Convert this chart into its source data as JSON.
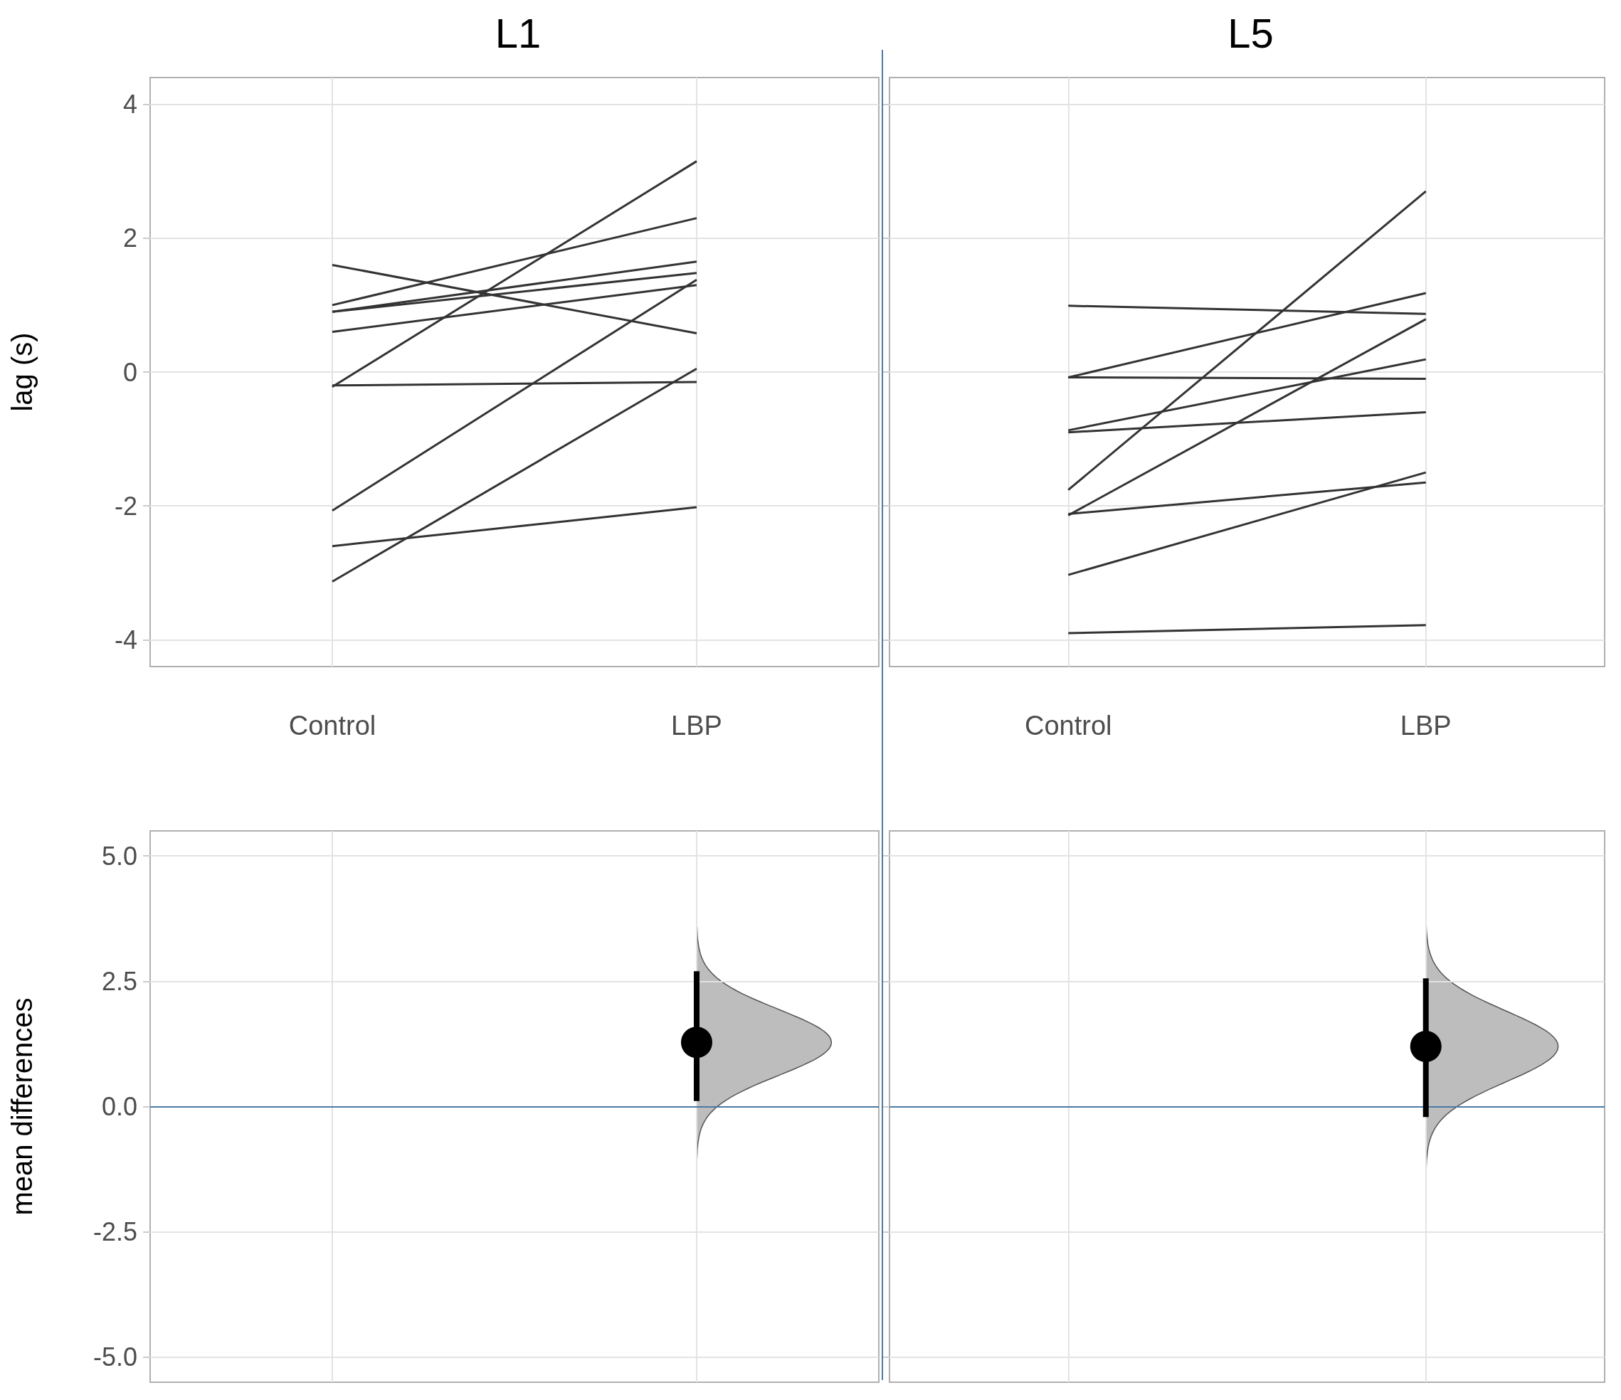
{
  "chart_data": [
    {
      "type": "line",
      "title": "L1",
      "ylabel": "lag (s)",
      "categories": [
        "Control",
        "LBP"
      ],
      "ylim": [
        -4.4,
        4.4
      ],
      "yticks": [
        -4,
        -2,
        0,
        2,
        4
      ],
      "grid": true,
      "marker": "none",
      "series": [
        {
          "color": "#333333",
          "values": [
            1.6,
            0.58
          ]
        },
        {
          "color": "#333333",
          "values": [
            1.0,
            2.3
          ]
        },
        {
          "color": "#333333",
          "values": [
            0.9,
            1.65
          ]
        },
        {
          "color": "#333333",
          "values": [
            0.9,
            1.48
          ]
        },
        {
          "color": "#333333",
          "values": [
            0.6,
            1.3
          ]
        },
        {
          "color": "#333333",
          "values": [
            -0.22,
            3.15
          ]
        },
        {
          "color": "#333333",
          "values": [
            -0.2,
            -0.15
          ]
        },
        {
          "color": "#333333",
          "values": [
            -2.07,
            1.38
          ]
        },
        {
          "color": "#333333",
          "values": [
            -3.13,
            0.05
          ]
        },
        {
          "color": "#333333",
          "values": [
            -2.6,
            -2.02
          ]
        }
      ]
    },
    {
      "type": "line",
      "title": "L5",
      "categories": [
        "Control",
        "LBP"
      ],
      "ylim": [
        -4.4,
        4.4
      ],
      "yticks": [
        -4,
        -2,
        0,
        2,
        4
      ],
      "grid": true,
      "marker": "none",
      "tick_labels": "x",
      "series": [
        {
          "color": "#333333",
          "values": [
            0.99,
            0.87
          ]
        },
        {
          "color": "#333333",
          "values": [
            -0.08,
            1.18
          ]
        },
        {
          "color": "#333333",
          "values": [
            -0.08,
            -0.1
          ]
        },
        {
          "color": "#333333",
          "values": [
            -0.87,
            0.19
          ]
        },
        {
          "color": "#333333",
          "values": [
            -0.9,
            -0.6
          ]
        },
        {
          "color": "#333333",
          "values": [
            -1.76,
            2.7
          ]
        },
        {
          "color": "#333333",
          "values": [
            -2.14,
            0.79
          ]
        },
        {
          "color": "#333333",
          "values": [
            -2.12,
            -1.65
          ]
        },
        {
          "color": "#333333",
          "values": [
            -3.03,
            -1.5
          ]
        },
        {
          "color": "#333333",
          "values": [
            -3.9,
            -3.78
          ]
        }
      ]
    },
    {
      "type": "scatter",
      "ylabel": "mean differences",
      "categories": [
        null,
        null
      ],
      "values": [
        null,
        1.28
      ],
      "errors": [
        null,
        [
          0.11,
          2.7
        ]
      ],
      "color": "#000000",
      "marker": "circle",
      "ylim": [
        -5.5,
        5.5
      ],
      "yticks": [
        {
          "value": -5,
          "label": "-5.0"
        },
        {
          "value": -2.5,
          "label": "-2.5"
        },
        {
          "value": 0,
          "label": "0.0"
        },
        {
          "value": 2.5,
          "label": "2.5"
        },
        {
          "value": 5,
          "label": "5.0"
        }
      ],
      "grid": true,
      "tick_labels": "y",
      "ref_lines": [
        {
          "axis": "y",
          "value": 0,
          "color": "#4a7aa5"
        }
      ]
    },
    {
      "type": "scatter",
      "categories": [
        null,
        null
      ],
      "values": [
        null,
        1.2
      ],
      "errors": [
        null,
        [
          -0.21,
          2.56
        ]
      ],
      "color": "#000000",
      "marker": "circle",
      "ylim": [
        -5.5,
        5.5
      ],
      "yticks": [
        -5,
        -2.5,
        0,
        2.5,
        5
      ],
      "grid": true,
      "tick_labels": false,
      "ref_lines": [
        {
          "axis": "y",
          "value": 0,
          "color": "#4a7aa5"
        }
      ]
    }
  ]
}
